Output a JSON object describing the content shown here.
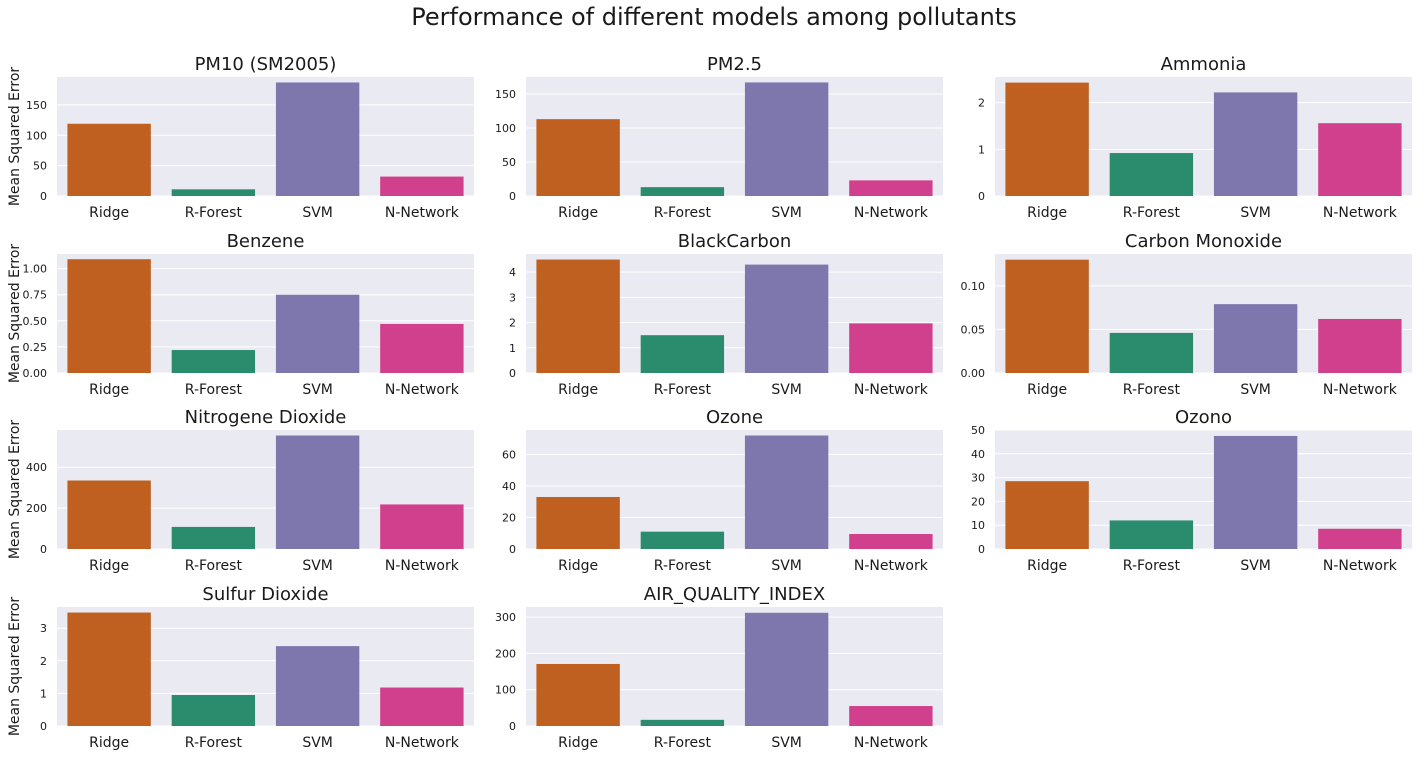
{
  "figure": {
    "suptitle": "Performance of different models among pollutants"
  },
  "colors": {
    "panel_background": "#eaeaf2",
    "grid": "#ffffff",
    "bars": [
      "#bf6020",
      "#2a8c6c",
      "#7d77ae",
      "#d1408c"
    ]
  },
  "chart_data": [
    {
      "type": "bar",
      "title": "PM10 (SM2005)",
      "ylabel": "Mean Squared Error",
      "categories": [
        "Ridge",
        "R-Forest",
        "SVM",
        "N-Network"
      ],
      "values": [
        119,
        11,
        187,
        32
      ],
      "ylim": [
        0,
        196
      ],
      "yticks": [
        0,
        50,
        100,
        150
      ]
    },
    {
      "type": "bar",
      "title": "PM2.5",
      "ylabel": "",
      "categories": [
        "Ridge",
        "R-Forest",
        "SVM",
        "N-Network"
      ],
      "values": [
        113,
        13,
        167,
        23
      ],
      "ylim": [
        0,
        175
      ],
      "yticks": [
        0,
        50,
        100,
        150
      ]
    },
    {
      "type": "bar",
      "title": "Ammonia",
      "ylabel": "",
      "categories": [
        "Ridge",
        "R-Forest",
        "SVM",
        "N-Network"
      ],
      "values": [
        2.43,
        0.92,
        2.22,
        1.56
      ],
      "ylim": [
        0,
        2.55
      ],
      "yticks": [
        0,
        1,
        2
      ]
    },
    {
      "type": "bar",
      "title": "Benzene",
      "ylabel": "Mean Squared Error",
      "categories": [
        "Ridge",
        "R-Forest",
        "SVM",
        "N-Network"
      ],
      "values": [
        1.09,
        0.22,
        0.75,
        0.47
      ],
      "ylim": [
        0,
        1.14
      ],
      "yticks": [
        0.0,
        0.25,
        0.5,
        0.75,
        1.0
      ],
      "yticklabels": [
        "0.00",
        "0.25",
        "0.50",
        "0.75",
        "1.00"
      ]
    },
    {
      "type": "bar",
      "title": "BlackCarbon",
      "ylabel": "",
      "categories": [
        "Ridge",
        "R-Forest",
        "SVM",
        "N-Network"
      ],
      "values": [
        4.5,
        1.5,
        4.3,
        1.97
      ],
      "ylim": [
        0,
        4.72
      ],
      "yticks": [
        0,
        1,
        2,
        3,
        4
      ]
    },
    {
      "type": "bar",
      "title": "Carbon Monoxide",
      "ylabel": "",
      "categories": [
        "Ridge",
        "R-Forest",
        "SVM",
        "N-Network"
      ],
      "values": [
        0.13,
        0.046,
        0.079,
        0.062
      ],
      "ylim": [
        0,
        0.1365
      ],
      "yticks": [
        0.0,
        0.05,
        0.1
      ],
      "yticklabels": [
        "0.00",
        "0.05",
        "0.10"
      ]
    },
    {
      "type": "bar",
      "title": "Nitrogene Dioxide",
      "ylabel": "Mean Squared Error",
      "categories": [
        "Ridge",
        "R-Forest",
        "SVM",
        "N-Network"
      ],
      "values": [
        335,
        108,
        555,
        218
      ],
      "ylim": [
        0,
        582
      ],
      "yticks": [
        0,
        200,
        400
      ]
    },
    {
      "type": "bar",
      "title": "Ozone",
      "ylabel": "",
      "categories": [
        "Ridge",
        "R-Forest",
        "SVM",
        "N-Network"
      ],
      "values": [
        33,
        11,
        72,
        9.5
      ],
      "ylim": [
        0,
        75.5
      ],
      "yticks": [
        0,
        20,
        40,
        60
      ]
    },
    {
      "type": "bar",
      "title": "Ozono",
      "ylabel": "",
      "categories": [
        "Ridge",
        "R-Forest",
        "SVM",
        "N-Network"
      ],
      "values": [
        28.5,
        12,
        47.5,
        8.5
      ],
      "ylim": [
        0,
        50
      ],
      "yticks": [
        0,
        10,
        20,
        30,
        40,
        50
      ]
    },
    {
      "type": "bar",
      "title": "Sulfur Dioxide",
      "ylabel": "Mean Squared Error",
      "categories": [
        "Ridge",
        "R-Forest",
        "SVM",
        "N-Network"
      ],
      "values": [
        3.48,
        0.95,
        2.45,
        1.18
      ],
      "ylim": [
        0,
        3.65
      ],
      "yticks": [
        0,
        1,
        2,
        3
      ]
    },
    {
      "type": "bar",
      "title": "AIR_QUALITY_INDEX",
      "ylabel": "",
      "categories": [
        "Ridge",
        "R-Forest",
        "SVM",
        "N-Network"
      ],
      "values": [
        171,
        17,
        312,
        55
      ],
      "ylim": [
        0,
        328
      ],
      "yticks": [
        0,
        100,
        200,
        300
      ]
    }
  ]
}
